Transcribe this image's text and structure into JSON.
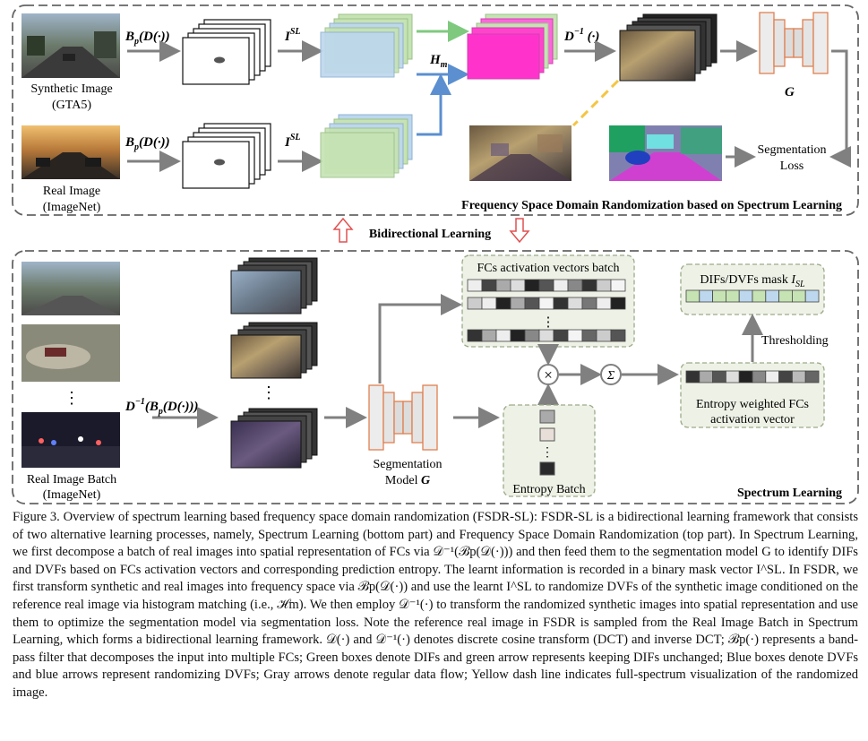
{
  "top_panel": {
    "synthetic_label_1": "Synthetic Image",
    "synthetic_label_2": "(GTA5)",
    "real_label_1": "Real Image",
    "real_label_2": "(ImageNet)",
    "op_bp_d": "B",
    "op_bp_sub": "p",
    "op_bp_rest": "(D(·))",
    "op_isl": "I",
    "op_isl_sup": "SL",
    "op_hm": "H",
    "op_hm_sub": "m",
    "op_dinv": "D",
    "op_dinv_sup": "−1",
    "op_dinv_rest": " (·)",
    "model_g": "G",
    "seg_loss_1": "Segmentation",
    "seg_loss_2": "Loss",
    "panel_title": "Frequency Space Domain Randomization based on Spectrum Learning"
  },
  "middle": {
    "bidirectional": "Bidirectional Learning"
  },
  "bottom_panel": {
    "batch_label_1": "Real Image Batch",
    "batch_label_2": "(ImageNet)",
    "op_dinv": "D",
    "op_dinv_sup": "−1",
    "op_rest": "(B",
    "op_sub": "p",
    "op_tail": "(D(·)))",
    "seg_model_1": "Segmentation",
    "seg_model_2": "Model",
    "seg_model_g": "G",
    "fc_batch_title": "FCs activation vectors batch",
    "entropy_batch": "Entropy Batch",
    "mask_title": "DIFs/DVFs mask",
    "mask_var": "I",
    "mask_sub": "SL",
    "thresholding": "Thresholding",
    "entropy_weighted_1": "Entropy weighted FCs",
    "entropy_weighted_2": "activation vector",
    "times_symbol": "×",
    "sum_symbol": "Σ",
    "dots": "⋮",
    "panel_title": "Spectrum Learning"
  },
  "caption": {
    "figure_no": "Figure 3.",
    "text": "Overview of spectrum learning based frequency space domain randomization (FSDR-SL): FSDR-SL is a bidirectional learning framework that consists of two alternative learning processes, namely, Spectrum Learning (bottom part) and Frequency Space Domain Randomization (top part). In Spectrum Learning, we first decompose a batch of real images into spatial representation of FCs via 𝒟⁻¹(ℬp(𝒟(·))) and then feed them to the segmentation model G to identify DIFs and DVFs based on FCs activation vectors and corresponding prediction entropy. The learnt information is recorded in a binary mask vector I^SL. In FSDR, we first transform synthetic and real images into frequency space via ℬp(𝒟(·)) and use the learnt I^SL to randomize DVFs of the synthetic image conditioned on the reference real image via histogram matching (i.e., ℋm). We then employ 𝒟⁻¹(·) to transform the randomized synthetic images into spatial representation and use them to optimize the segmentation model via segmentation loss. Note the reference real image in FSDR is sampled from the Real Image Batch in Spectrum Learning, which forms a bidirectional learning framework. 𝒟(·) and 𝒟⁻¹(·) denotes discrete cosine transform (DCT) and inverse DCT; ℬp(·) represents a band-pass filter that decomposes the input into multiple FCs; Green boxes denote DIFs and green arrow represents keeping DIFs unchanged; Blue boxes denote DVFs and blue arrows represent randomizing DVFs; Gray arrows denote regular data flow; Yellow dash line indicates full-spectrum visualization of the randomized image."
  },
  "colors": {
    "green_box": "#c6e3b4",
    "blue_box": "#bdd7ee",
    "magenta": "#ff33cc",
    "blue_arrow": "#5b8fd0",
    "green_arrow": "#7fc97f",
    "gray_arrow": "#808080",
    "yellow_dash": "#f5c542",
    "red_arrow": "#e05050",
    "panel_border": "#666666",
    "sub_panel_fill": "#eef2e6"
  }
}
